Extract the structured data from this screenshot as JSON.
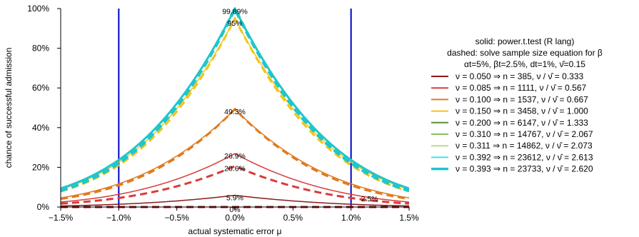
{
  "chart_data": {
    "type": "line",
    "x_tick_labels": [
      "−1.5%",
      "−1.0%",
      "−0.5%",
      "0.0%",
      "0.5%",
      "1.0%",
      "1.5%"
    ],
    "y_tick_labels": [
      "0%",
      "20%",
      "40%",
      "60%",
      "80%",
      "100%"
    ],
    "xlim": [
      -1.5,
      1.5
    ],
    "ylim": [
      0,
      100
    ],
    "xlabel": "actual systematic error μ",
    "ylabel": "chance of successful admission",
    "tolerance_limits": [
      -1.0,
      1.0
    ],
    "legend_header": [
      "solid: power.t.test (R lang)",
      "dashed: solve sample size equation for β",
      "αt=5%, βt=2.5%, dt=1%, ν̂=0.15"
    ],
    "series": [
      {
        "name": "ν = 0.050  ⇒  n =     385,  ν / ν̂ = 0.333",
        "nu": 0.05,
        "n": 385,
        "ratio": 0.333,
        "peak_solid": 5.9,
        "peak_dashed": 0.0,
        "color": "#8b1a1a",
        "width": 1.5
      },
      {
        "name": "ν = 0.085  ⇒  n =   1111,  ν / ν̂ = 0.567",
        "nu": 0.085,
        "n": 1111,
        "ratio": 0.567,
        "peak_solid": 26.9,
        "peak_dashed": 20.6,
        "color": "#d93b3b",
        "width": 1.5
      },
      {
        "name": "ν = 0.100  ⇒  n =   1537,  ν / ν̂ = 0.667",
        "nu": 0.1,
        "n": 1537,
        "ratio": 0.667,
        "peak_solid": 49.3,
        "peak_dashed": 49.3,
        "color": "#e07b1f",
        "width": 1.5
      },
      {
        "name": "ν = 0.150  ⇒  n =   3458,  ν / ν̂ = 1.000",
        "nu": 0.15,
        "n": 3458,
        "ratio": 1.0,
        "peak_solid": 95.0,
        "peak_dashed": 95.0,
        "color": "#f2c419",
        "width": 1.5
      },
      {
        "name": "ν = 0.200  ⇒  n =   6147,  ν / ν̂ = 1.333",
        "nu": 0.2,
        "n": 6147,
        "ratio": 1.333,
        "peak_solid": 99.89,
        "peak_dashed": 99.89,
        "color": "#5a8a3a",
        "width": 1.5
      },
      {
        "name": "ν = 0.310  ⇒  n = 14767,  ν / ν̂ = 2.067",
        "nu": 0.31,
        "n": 14767,
        "ratio": 2.067,
        "peak_solid": 100,
        "peak_dashed": 100,
        "color": "#8cbf5a",
        "width": 1.5
      },
      {
        "name": "ν = 0.311  ⇒  n = 14862,  ν / ν̂ = 2.073",
        "nu": 0.311,
        "n": 14862,
        "ratio": 2.073,
        "peak_solid": 100,
        "peak_dashed": 100,
        "color": "#b8dc8c",
        "width": 1.5
      },
      {
        "name": "ν = 0.392  ⇒  n = 23612,  ν / ν̂ = 2.613",
        "nu": 0.392,
        "n": 23612,
        "ratio": 2.613,
        "peak_solid": 100,
        "peak_dashed": 100,
        "color": "#45e0e6",
        "width": 1.5
      },
      {
        "name": "ν = 0.393  ⇒  n = 23733,  ν / ν̂ = 2.620",
        "nu": 0.393,
        "n": 23733,
        "ratio": 2.62,
        "peak_solid": 100,
        "peak_dashed": 100,
        "color": "#1fc6cc",
        "width": 3
      }
    ],
    "annotations": [
      {
        "text": "99.89%",
        "x": 0.0,
        "y": 99.89
      },
      {
        "text": "95%",
        "x": 0.0,
        "y": 95.0
      },
      {
        "text": "49.3%",
        "x": 0.0,
        "y": 49.3
      },
      {
        "text": "26.9%",
        "x": 0.0,
        "y": 26.9
      },
      {
        "text": "20.6%",
        "x": 0.0,
        "y": 20.6
      },
      {
        "text": "5.9%",
        "x": 0.0,
        "y": 5.9
      },
      {
        "text": "0%",
        "x": 0.0,
        "y": 0.0
      },
      {
        "text": "2.5%",
        "x": 1.0,
        "y": 2.5
      }
    ],
    "colors": {
      "limit_line": "#0000cc",
      "axis": "#000000"
    }
  }
}
